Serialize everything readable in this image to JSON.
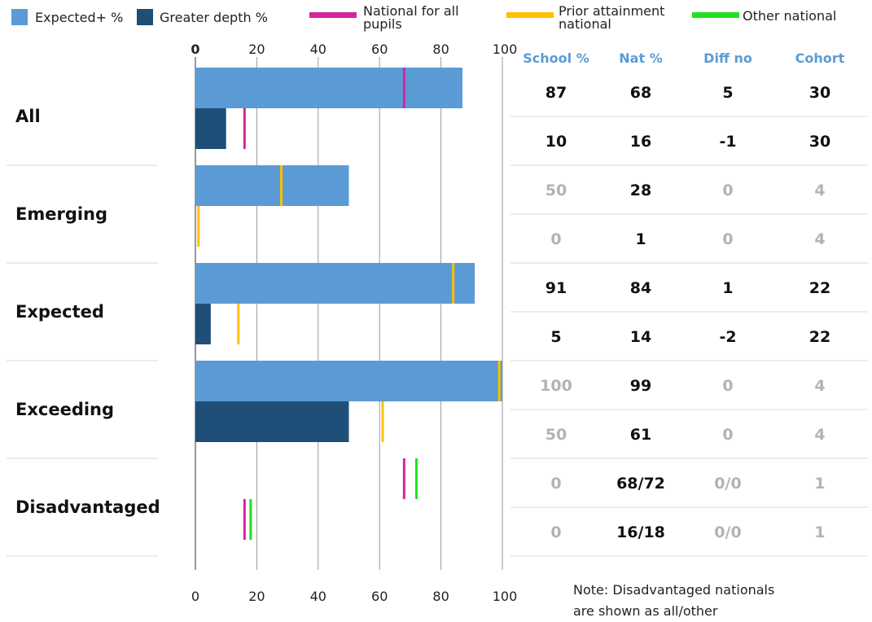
{
  "chart_data": {
    "type": "bar",
    "orientation": "horizontal",
    "xlim": [
      0,
      100
    ],
    "x_ticks": [
      "0",
      "20",
      "40",
      "60",
      "80",
      "100"
    ],
    "legend": [
      {
        "label": "Expected+ %",
        "type": "box",
        "color": "#5b9bd5"
      },
      {
        "label": "Greater depth %",
        "type": "box",
        "color": "#1f4e79"
      },
      {
        "label": "National for all\npupils",
        "type": "line",
        "color": "#d6249f"
      },
      {
        "label": "Prior attainment\nnational",
        "type": "line",
        "color": "#ffc000"
      },
      {
        "label": "Other national",
        "type": "line",
        "color": "#21e021"
      }
    ],
    "colors": {
      "expected": "#5b9bd5",
      "greater_depth": "#1f4e79",
      "national_all": "#d6249f",
      "prior_attainment": "#ffc000",
      "other_national": "#21e021",
      "grey_text": "#b3b3b3",
      "header_text": "#5b9bd5"
    },
    "table_headers": [
      "School %",
      "Nat %",
      "Diff no",
      "Cohort"
    ],
    "groups": [
      {
        "label": "All",
        "rows": [
          {
            "measure": "Expected+ %",
            "value": 87,
            "marks": [
              {
                "type": "national_all",
                "value": 68
              }
            ],
            "cells": [
              "87",
              "68",
              "5",
              "30"
            ],
            "muted": false
          },
          {
            "measure": "Greater depth %",
            "value": 10,
            "marks": [
              {
                "type": "national_all",
                "value": 16
              }
            ],
            "cells": [
              "10",
              "16",
              "-1",
              "30"
            ],
            "muted": false
          }
        ]
      },
      {
        "label": "Emerging",
        "rows": [
          {
            "measure": "Expected+ %",
            "value": 50,
            "marks": [
              {
                "type": "prior_attainment",
                "value": 28
              }
            ],
            "cells": [
              "50",
              "28",
              "0",
              "4"
            ],
            "muted": true
          },
          {
            "measure": "Greater depth %",
            "value": 0,
            "marks": [
              {
                "type": "prior_attainment",
                "value": 1
              }
            ],
            "cells": [
              "0",
              "1",
              "0",
              "4"
            ],
            "muted": true
          }
        ]
      },
      {
        "label": "Expected",
        "rows": [
          {
            "measure": "Expected+ %",
            "value": 91,
            "marks": [
              {
                "type": "prior_attainment",
                "value": 84
              }
            ],
            "cells": [
              "91",
              "84",
              "1",
              "22"
            ],
            "muted": false
          },
          {
            "measure": "Greater depth %",
            "value": 5,
            "marks": [
              {
                "type": "prior_attainment",
                "value": 14
              }
            ],
            "cells": [
              "5",
              "14",
              "-2",
              "22"
            ],
            "muted": false
          }
        ]
      },
      {
        "label": "Exceeding",
        "rows": [
          {
            "measure": "Expected+ %",
            "value": 100,
            "marks": [
              {
                "type": "prior_attainment",
                "value": 99
              }
            ],
            "cells": [
              "100",
              "99",
              "0",
              "4"
            ],
            "muted": true
          },
          {
            "measure": "Greater depth %",
            "value": 50,
            "marks": [
              {
                "type": "prior_attainment",
                "value": 61
              }
            ],
            "cells": [
              "50",
              "61",
              "0",
              "4"
            ],
            "muted": true
          }
        ]
      },
      {
        "label": "Disadvantaged",
        "rows": [
          {
            "measure": "Expected+ %",
            "value": 0,
            "marks": [
              {
                "type": "national_all",
                "value": 68
              },
              {
                "type": "other_national",
                "value": 72
              }
            ],
            "cells": [
              "0",
              "68/72",
              "0/0",
              "1"
            ],
            "muted": true
          },
          {
            "measure": "Greater depth %",
            "value": 0,
            "marks": [
              {
                "type": "national_all",
                "value": 16
              },
              {
                "type": "other_national",
                "value": 18
              }
            ],
            "cells": [
              "0",
              "16/18",
              "0/0",
              "1"
            ],
            "muted": true
          }
        ]
      }
    ],
    "note": [
      "Note: Disadvantaged nationals",
      "are shown as all/other"
    ]
  }
}
